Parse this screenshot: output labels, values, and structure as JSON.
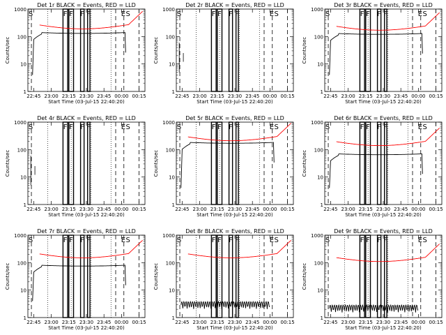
{
  "chart_data": {
    "type": "line",
    "grid": "3x3",
    "ylabel": "Counts/sec",
    "xlabel": "Start Time (03-Jul-15 22:40:20)",
    "x_ticks": [
      "22:45",
      "23:00",
      "23:15",
      "23:30",
      "23:45",
      "00:00",
      "00:15"
    ],
    "x_tick_minutes": [
      5,
      20,
      35,
      50,
      65,
      80,
      95
    ],
    "xlim_minutes": [
      0,
      100
    ],
    "y_scale": "log",
    "ylim": [
      1,
      1000
    ],
    "y_ticks": [
      "1",
      "10",
      "100",
      "1000"
    ],
    "event_labels": {
      "S": "S",
      "F": "F",
      "E": "E"
    },
    "colors": {
      "events": "#000000",
      "lld": "#ff0000"
    },
    "panels": [
      {
        "title": "Det 1r BLACK = Events, RED = LLD",
        "profile": "normal",
        "black_level": 130,
        "red_level": 190
      },
      {
        "title": "Det 2r BLACK = Events, RED = LLD",
        "profile": "empty",
        "black_level": 0,
        "red_level": 0
      },
      {
        "title": "Det 3r BLACK = Events, RED = LLD",
        "profile": "normal",
        "black_level": 120,
        "red_level": 170
      },
      {
        "title": "Det 4r BLACK = Events, RED = LLD",
        "profile": "empty",
        "black_level": 0,
        "red_level": 0
      },
      {
        "title": "Det 5r BLACK = Events, RED = LLD",
        "profile": "close",
        "black_level": 170,
        "red_level": 210
      },
      {
        "title": "Det 6r BLACK = Events, RED = LLD",
        "profile": "normal",
        "black_level": 65,
        "red_level": 140
      },
      {
        "title": "Det 7r BLACK = Events, RED = LLD",
        "profile": "normal",
        "black_level": 75,
        "red_level": 150
      },
      {
        "title": "Det 8r BLACK = Events, RED = LLD",
        "profile": "low",
        "black_level": 2,
        "red_level": 150
      },
      {
        "title": "Det 9r BLACK = Events, RED = LLD",
        "profile": "low",
        "black_level": 1.5,
        "red_level": 110
      }
    ]
  }
}
